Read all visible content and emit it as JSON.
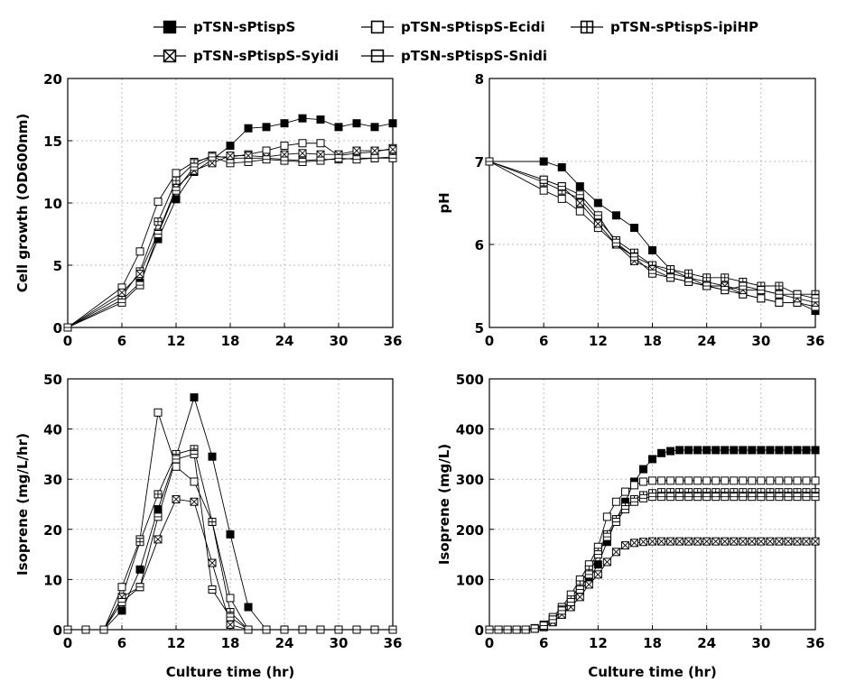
{
  "chart_data": [
    {
      "type": "line",
      "ylabel": "Cell growth (OD600nm)",
      "grid": true,
      "x": [
        0,
        6,
        8,
        10,
        12,
        14,
        16,
        18,
        20,
        22,
        24,
        26,
        28,
        30,
        32,
        34,
        36
      ],
      "xlim": [
        0,
        36
      ],
      "xticks": [
        0,
        6,
        12,
        18,
        24,
        30,
        36
      ],
      "ylim": [
        0,
        20
      ],
      "yticks": [
        0,
        5,
        10,
        15,
        20
      ],
      "series": [
        {
          "name": "pTSN-sPtispS",
          "color": "#000000",
          "marker": "filled-square",
          "values": [
            0,
            2.2,
            3.6,
            7.1,
            10.3,
            12.5,
            13.5,
            14.6,
            16.0,
            16.1,
            16.4,
            16.8,
            16.7,
            16.1,
            16.4,
            16.1,
            16.4
          ]
        },
        {
          "name": "pTSN-sPtispS-Ecidi",
          "color": "#000000",
          "marker": "open-square",
          "values": [
            0,
            3.2,
            6.1,
            10.1,
            12.4,
            13.3,
            13.7,
            13.7,
            13.9,
            14.2,
            14.6,
            14.8,
            14.8,
            13.8,
            14.0,
            14.1,
            14.4
          ]
        },
        {
          "name": "pTSN-sPtispS-ipiHP",
          "color": "#000000",
          "marker": "plus-square",
          "values": [
            0,
            2.5,
            4.5,
            8.5,
            11.8,
            13.2,
            13.8,
            13.6,
            13.6,
            13.6,
            13.5,
            13.4,
            13.5,
            13.5,
            13.6,
            13.6,
            13.7
          ]
        },
        {
          "name": "pTSN-sPtispS-Syidi",
          "color": "#000000",
          "marker": "cross-square",
          "values": [
            0,
            2.8,
            4.3,
            7.6,
            11.2,
            12.6,
            13.2,
            13.8,
            13.8,
            13.7,
            13.9,
            14.0,
            13.9,
            13.9,
            14.2,
            14.2,
            14.3
          ]
        },
        {
          "name": "pTSN-sPtispS-Snidi",
          "color": "#000000",
          "marker": "dash-square",
          "values": [
            0,
            2.0,
            3.4,
            7.5,
            11.0,
            12.9,
            13.7,
            13.2,
            13.3,
            13.5,
            13.4,
            13.3,
            13.4,
            13.6,
            13.5,
            13.6,
            13.6
          ]
        }
      ]
    },
    {
      "type": "line",
      "ylabel": "pH",
      "grid": true,
      "x": [
        0,
        6,
        8,
        10,
        12,
        14,
        16,
        18,
        20,
        22,
        24,
        26,
        28,
        30,
        32,
        34,
        36
      ],
      "xlim": [
        0,
        36
      ],
      "xticks": [
        0,
        6,
        12,
        18,
        24,
        30,
        36
      ],
      "ylim": [
        5,
        8
      ],
      "yticks": [
        5,
        6,
        7,
        8
      ],
      "series": [
        {
          "name": "pTSN-sPtispS",
          "color": "#000000",
          "marker": "filled-square",
          "values": [
            7,
            7.0,
            6.93,
            6.7,
            6.5,
            6.35,
            6.2,
            5.93,
            5.7,
            5.6,
            5.5,
            5.45,
            5.4,
            5.35,
            5.3,
            5.3,
            5.2
          ]
        },
        {
          "name": "pTSN-sPtispS-Ecidi",
          "color": "#000000",
          "marker": "open-square",
          "values": [
            7,
            6.65,
            6.55,
            6.4,
            6.2,
            6.0,
            5.85,
            5.75,
            5.65,
            5.6,
            5.55,
            5.5,
            5.4,
            5.35,
            5.3,
            5.3,
            5.25
          ]
        },
        {
          "name": "pTSN-sPtispS-ipiHP",
          "color": "#000000",
          "marker": "plus-square",
          "values": [
            7,
            6.75,
            6.65,
            6.55,
            6.3,
            6.05,
            5.9,
            5.75,
            5.7,
            5.65,
            5.6,
            5.6,
            5.55,
            5.5,
            5.5,
            5.4,
            5.4
          ]
        },
        {
          "name": "pTSN-sPtispS-Syidi",
          "color": "#000000",
          "marker": "cross-square",
          "values": [
            7,
            6.78,
            6.7,
            6.5,
            6.25,
            6.0,
            5.8,
            5.7,
            5.6,
            5.55,
            5.5,
            5.5,
            5.45,
            5.45,
            5.4,
            5.35,
            5.3
          ]
        },
        {
          "name": "pTSN-sPtispS-Snidi",
          "color": "#000000",
          "marker": "dash-square",
          "values": [
            7,
            6.78,
            6.7,
            6.6,
            6.35,
            6.02,
            5.85,
            5.65,
            5.6,
            5.55,
            5.5,
            5.45,
            5.5,
            5.45,
            5.4,
            5.4,
            5.35
          ]
        }
      ]
    },
    {
      "type": "line",
      "ylabel": "Isoprene (mg/L/hr)",
      "xlabel": "Culture time (hr)",
      "grid": true,
      "x": [
        0,
        2,
        4,
        6,
        8,
        10,
        12,
        14,
        16,
        18,
        20,
        22,
        24,
        26,
        28,
        30,
        32,
        34,
        36
      ],
      "xlim": [
        0,
        36
      ],
      "xticks": [
        0,
        6,
        12,
        18,
        24,
        30,
        36
      ],
      "ylim": [
        0,
        50
      ],
      "yticks": [
        0,
        10,
        20,
        30,
        40,
        50
      ],
      "series": [
        {
          "name": "pTSN-sPtispS",
          "color": "#000000",
          "marker": "filled-square",
          "values": [
            0,
            0,
            0,
            3.8,
            12,
            24,
            34.5,
            46.3,
            34.5,
            19,
            4.5,
            0,
            0,
            0,
            0,
            0,
            0,
            0,
            0
          ]
        },
        {
          "name": "pTSN-sPtispS-Ecidi",
          "color": "#000000",
          "marker": "open-square",
          "values": [
            0,
            0,
            0,
            8.5,
            18,
            43.3,
            32.5,
            29.5,
            21.5,
            6.3,
            0,
            0,
            0,
            0,
            0,
            0,
            0,
            0,
            0
          ]
        },
        {
          "name": "pTSN-sPtispS-ipiHP",
          "color": "#000000",
          "marker": "plus-square",
          "values": [
            0,
            0,
            0,
            6.5,
            17.5,
            27,
            35,
            36,
            21.5,
            3.5,
            0,
            0,
            0,
            0,
            0,
            0,
            0,
            0,
            0
          ]
        },
        {
          "name": "pTSN-sPtispS-Syidi",
          "color": "#000000",
          "marker": "cross-square",
          "values": [
            0,
            0,
            0,
            6.5,
            8.5,
            18,
            26,
            25.5,
            13.3,
            1,
            0,
            0,
            0,
            0,
            0,
            0,
            0,
            0,
            0
          ]
        },
        {
          "name": "pTSN-sPtispS-Snidi",
          "color": "#000000",
          "marker": "dash-square",
          "values": [
            0,
            0,
            0,
            5.5,
            8.5,
            22.5,
            34,
            35,
            8,
            2.5,
            0,
            0,
            0,
            0,
            0,
            0,
            0,
            0,
            0
          ]
        }
      ]
    },
    {
      "type": "line",
      "ylabel": "Isoprene (mg/L)",
      "xlabel": "Culture time (hr)",
      "grid": true,
      "x": [
        0,
        1,
        2,
        3,
        4,
        5,
        6,
        7,
        8,
        9,
        10,
        11,
        12,
        13,
        14,
        15,
        16,
        17,
        18,
        19,
        20,
        21,
        22,
        23,
        24,
        25,
        26,
        27,
        28,
        29,
        30,
        31,
        32,
        33,
        34,
        35,
        36
      ],
      "xlim": [
        0,
        36
      ],
      "xticks": [
        0,
        6,
        12,
        18,
        24,
        30,
        36
      ],
      "ylim": [
        0,
        500
      ],
      "yticks": [
        0,
        100,
        200,
        300,
        400,
        500
      ],
      "series": [
        {
          "name": "pTSN-sPtispS",
          "color": "#000000",
          "marker": "filled-square",
          "values": [
            0,
            0,
            0,
            0,
            0,
            2,
            5,
            15,
            30,
            50,
            75,
            100,
            130,
            175,
            220,
            255,
            295,
            320,
            340,
            352,
            356,
            358,
            358,
            358,
            358,
            358,
            358,
            358,
            358,
            358,
            358,
            358,
            358,
            358,
            358,
            358,
            358
          ]
        },
        {
          "name": "pTSN-sPtispS-Ecidi",
          "color": "#000000",
          "marker": "open-square",
          "values": [
            0,
            0,
            0,
            0,
            0,
            3,
            10,
            25,
            45,
            70,
            100,
            130,
            165,
            225,
            255,
            275,
            288,
            295,
            297,
            297,
            297,
            297,
            297,
            297,
            297,
            297,
            297,
            297,
            297,
            297,
            297,
            297,
            297,
            297,
            297,
            297,
            297
          ]
        },
        {
          "name": "pTSN-sPtispS-ipiHP",
          "color": "#000000",
          "marker": "plus-square",
          "values": [
            0,
            0,
            0,
            0,
            0,
            2,
            8,
            20,
            40,
            60,
            90,
            120,
            155,
            190,
            220,
            245,
            260,
            268,
            272,
            274,
            274,
            274,
            274,
            274,
            274,
            274,
            274,
            274,
            274,
            274,
            274,
            274,
            274,
            274,
            274,
            274,
            274
          ]
        },
        {
          "name": "pTSN-sPtispS-Syidi",
          "color": "#000000",
          "marker": "cross-square",
          "values": [
            0,
            0,
            0,
            0,
            0,
            2,
            6,
            15,
            30,
            45,
            65,
            90,
            110,
            135,
            155,
            168,
            173,
            175,
            176,
            176,
            176,
            176,
            176,
            176,
            176,
            176,
            176,
            176,
            176,
            176,
            176,
            176,
            176,
            176,
            176,
            176,
            176
          ]
        },
        {
          "name": "pTSN-sPtispS-Snidi",
          "color": "#000000",
          "marker": "dash-square",
          "values": [
            0,
            0,
            0,
            0,
            0,
            2,
            8,
            20,
            38,
            55,
            80,
            110,
            150,
            185,
            215,
            240,
            255,
            262,
            265,
            265,
            265,
            265,
            265,
            265,
            265,
            265,
            265,
            265,
            265,
            265,
            265,
            265,
            265,
            265,
            265,
            265,
            265
          ]
        }
      ]
    }
  ]
}
